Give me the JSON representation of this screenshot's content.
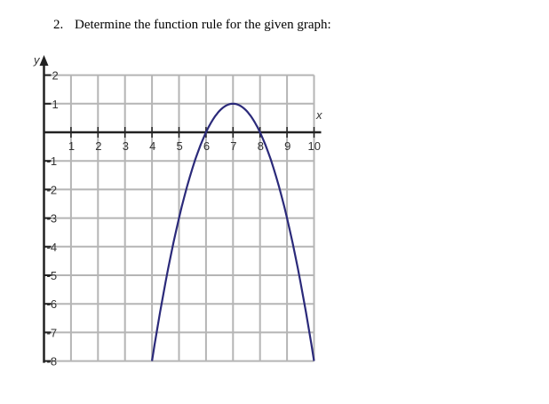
{
  "question": {
    "number": "2.",
    "text": "Determine the function rule for the given graph:"
  },
  "chart_data": {
    "type": "line",
    "xlabel": "x",
    "ylabel": "y",
    "xlim": [
      0,
      10
    ],
    "ylim": [
      -8,
      2
    ],
    "grid": true,
    "x_ticks": [
      "1",
      "2",
      "3",
      "4",
      "5",
      "6",
      "7",
      "8",
      "9",
      "10"
    ],
    "y_ticks": [
      "2",
      "1",
      "-1",
      "-2",
      "-3",
      "-4",
      "-5",
      "-6",
      "-7",
      "-8"
    ],
    "series": [
      {
        "x": [
          4,
          5,
          6,
          6.5,
          7,
          7.5,
          8,
          9,
          10
        ],
        "y": [
          -8,
          -3,
          0,
          0.75,
          1,
          0.75,
          0,
          -3,
          -8
        ],
        "color": "#2b2a7a"
      }
    ],
    "grid_color": "#b5b5b5",
    "axis_color": "#222222"
  }
}
